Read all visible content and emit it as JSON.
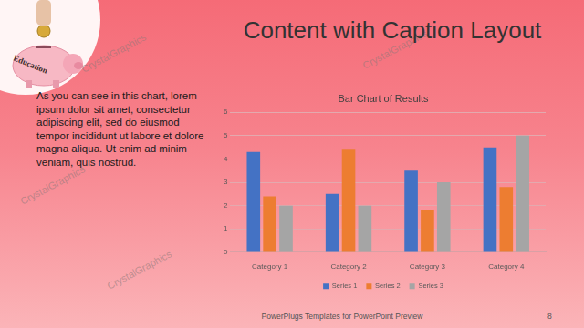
{
  "slide": {
    "title": "Content with Caption Layout",
    "caption": "As you can see in this chart, lorem ipsum dolor sit amet, consectetur adipiscing elit, sed do eiusmod tempor incididunt ut labore et dolore magna aliqua. Ut enim ad minim veniam, quis nostrud.",
    "image_text": "Education",
    "watermark": "CrystalGraphics",
    "footer": "PowerPlugs Templates for PowerPoint Preview",
    "page_number": "8"
  },
  "chart_data": {
    "type": "bar",
    "title": "Bar Chart of Results",
    "categories": [
      "Category 1",
      "Category 2",
      "Category 3",
      "Category 4"
    ],
    "series": [
      {
        "name": "Series 1",
        "color": "#4472c4",
        "values": [
          4.3,
          2.5,
          3.5,
          4.5
        ]
      },
      {
        "name": "Series 2",
        "color": "#ed7d31",
        "values": [
          2.4,
          4.4,
          1.8,
          2.8
        ]
      },
      {
        "name": "Series 3",
        "color": "#a5a5a5",
        "values": [
          2,
          2,
          3,
          5
        ]
      }
    ],
    "ylim": [
      0,
      6
    ],
    "yticks": [
      0,
      1,
      2,
      3,
      4,
      5,
      6
    ],
    "grid": true,
    "legend": "bottom"
  }
}
